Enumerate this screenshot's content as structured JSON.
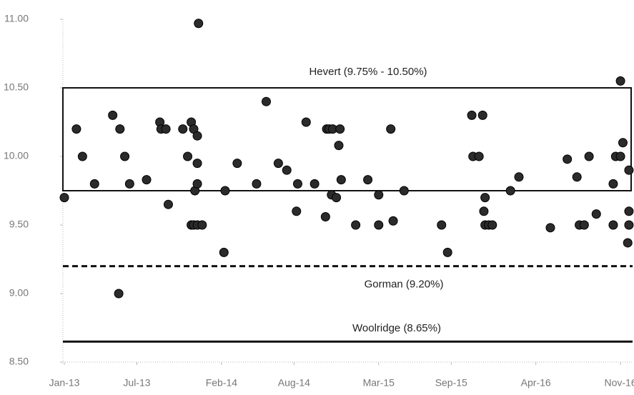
{
  "chart_data": {
    "type": "scatter",
    "series": [
      {
        "color": "#2b2b2b",
        "x": [
          0,
          1.0,
          1.5,
          2.5,
          4.0,
          4.6,
          4.5,
          5.0,
          5.4,
          6.8,
          7.9,
          8.0,
          8.4,
          8.6,
          9.8,
          10.2,
          10.5,
          10.7,
          11.0,
          11.1,
          11.0,
          10.8,
          11.0,
          10.5,
          10.7,
          11.0,
          11.4,
          13.2,
          13.3,
          14.3,
          15.9,
          16.7,
          17.7,
          18.4,
          19.3,
          19.2,
          20.0,
          20.7,
          21.6,
          21.7,
          21.9,
          22.2,
          22.8,
          22.7,
          22.1,
          22.5,
          22.9,
          24.1,
          25.1,
          26.0,
          26.0,
          27.0,
          27.2,
          28.1,
          31.2,
          31.7,
          33.7,
          34.6,
          33.8,
          34.3,
          34.8,
          34.7,
          34.8,
          35.1,
          35.4,
          36.9,
          37.6,
          40.2,
          41.6,
          42.4,
          42.6,
          43.0,
          43.4,
          44.0,
          45.4,
          45.4,
          45.6,
          46.0,
          46.0,
          46.2,
          46.7,
          46.7,
          46.7,
          46.6
        ],
        "values": [
          9.7,
          10.2,
          10.0,
          9.8,
          10.3,
          10.2,
          9.0,
          10.0,
          9.8,
          9.83,
          10.25,
          10.2,
          10.2,
          9.65,
          10.2,
          10.0,
          10.25,
          10.2,
          10.15,
          10.97,
          9.95,
          9.75,
          9.8,
          9.5,
          9.5,
          9.5,
          9.5,
          9.3,
          9.75,
          9.95,
          9.8,
          10.4,
          9.95,
          9.9,
          9.8,
          9.6,
          10.25,
          9.8,
          9.56,
          10.2,
          10.2,
          10.2,
          10.2,
          10.08,
          9.72,
          9.7,
          9.83,
          9.5,
          9.83,
          9.72,
          9.5,
          10.2,
          9.53,
          9.75,
          9.5,
          9.3,
          10.3,
          10.3,
          10.0,
          10.0,
          9.7,
          9.6,
          9.5,
          9.5,
          9.5,
          9.75,
          9.85,
          9.48,
          9.98,
          9.85,
          9.5,
          9.5,
          10.0,
          9.58,
          9.5,
          9.8,
          10.0,
          10.0,
          10.55,
          10.1,
          9.6,
          9.9,
          9.5,
          9.37
        ]
      }
    ],
    "reference": [
      {
        "label": "Hevert (9.75% - 10.50%)",
        "range": [
          9.75,
          10.5
        ],
        "style": "box"
      },
      {
        "label": "Gorman (9.20%)",
        "value": 9.2,
        "style": "dashed"
      },
      {
        "label": "Woolridge (8.65%)",
        "value": 8.65,
        "style": "solid"
      }
    ],
    "xlim": [
      0,
      47
    ],
    "xticks": [
      {
        "value": 0,
        "label": "Jan-13"
      },
      {
        "value": 6,
        "label": "Jul-13"
      },
      {
        "value": 13,
        "label": "Feb-14"
      },
      {
        "value": 19,
        "label": "Aug-14"
      },
      {
        "value": 26,
        "label": "Mar-15"
      },
      {
        "value": 32,
        "label": "Sep-15"
      },
      {
        "value": 39,
        "label": "Apr-16"
      },
      {
        "value": 46,
        "label": "Nov-16"
      }
    ],
    "ylim": [
      8.5,
      11
    ],
    "yticks": [
      {
        "value": 8.5,
        "label": "8.50"
      },
      {
        "value": 9,
        "label": "9.00"
      },
      {
        "value": 9.5,
        "label": "9.50"
      },
      {
        "value": 10,
        "label": "10.00"
      },
      {
        "value": 10.5,
        "label": "10.50"
      },
      {
        "value": 11,
        "label": "11.00"
      }
    ]
  }
}
